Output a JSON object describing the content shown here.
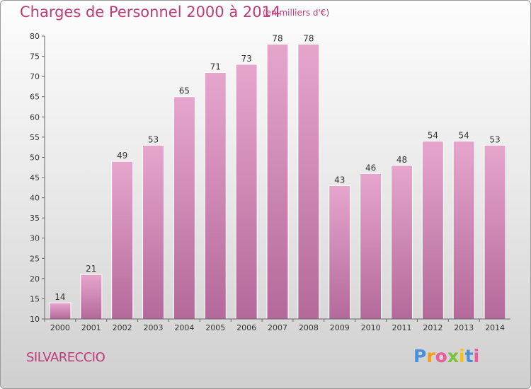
{
  "chart_data": {
    "type": "bar",
    "title": "Charges de Personnel 2000 à 2014",
    "subtitle": "(en milliers d'€)",
    "categories": [
      "2000",
      "2001",
      "2002",
      "2003",
      "2004",
      "2005",
      "2006",
      "2007",
      "2008",
      "2009",
      "2010",
      "2011",
      "2012",
      "2013",
      "2014"
    ],
    "values": [
      14,
      21,
      49,
      53,
      65,
      71,
      73,
      78,
      78,
      43,
      46,
      48,
      54,
      54,
      53
    ],
    "ylim": [
      10,
      80
    ],
    "yticks": [
      10,
      15,
      20,
      25,
      30,
      35,
      40,
      45,
      50,
      55,
      60,
      65,
      70,
      75,
      80
    ],
    "grid": false,
    "bar_color_top": "#e6a6cc",
    "bar_color_bottom": "#b4699a"
  },
  "commune": "SILVARECCIO",
  "logo": {
    "letters": [
      "P",
      "r",
      "o",
      "x",
      "i",
      "t",
      "i"
    ],
    "colors": [
      "#4a90d9",
      "#f29b1c",
      "#e85d9a",
      "#7cbf3a",
      "#f2c21c",
      "#4a90d9",
      "#e85d9a"
    ]
  }
}
